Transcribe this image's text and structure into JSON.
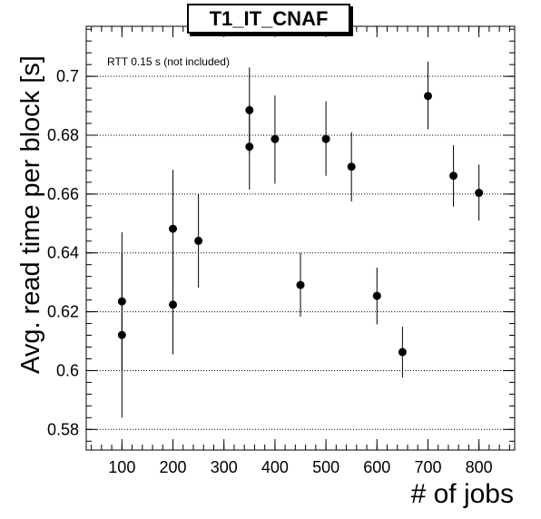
{
  "chart_data": {
    "type": "scatter",
    "title": "T1_IT_CNAF",
    "xlabel": "# of jobs",
    "ylabel": "Avg. read time per block [s]",
    "annotation": "RTT 0.15 s (not included)",
    "xlim": [
      30,
      870
    ],
    "ylim": [
      0.573,
      0.717
    ],
    "xticks": [
      100,
      200,
      300,
      400,
      500,
      600,
      700,
      800
    ],
    "yticks": [
      0.58,
      0.6,
      0.62,
      0.64,
      0.66,
      0.68,
      0.7
    ],
    "ytick_labels": [
      "0.58",
      "0.6",
      "0.62",
      "0.64",
      "0.66",
      "0.68",
      "0.7"
    ],
    "grid": "horizontal-dotted",
    "series": [
      {
        "points": [
          {
            "x": 100,
            "y": 0.6235,
            "ylo": 0.6,
            "yhi": 0.647
          },
          {
            "x": 100,
            "y": 0.6121,
            "ylo": 0.584,
            "yhi": 0.64
          },
          {
            "x": 200,
            "y": 0.6482,
            "ylo": 0.6282,
            "yhi": 0.6682
          },
          {
            "x": 200,
            "y": 0.6224,
            "ylo": 0.6055,
            "yhi": 0.639
          },
          {
            "x": 250,
            "y": 0.6441,
            "ylo": 0.6282,
            "yhi": 0.66
          },
          {
            "x": 350,
            "y": 0.6885,
            "ylo": 0.674,
            "yhi": 0.703
          },
          {
            "x": 350,
            "y": 0.6761,
            "ylo": 0.6615,
            "yhi": 0.6905
          },
          {
            "x": 400,
            "y": 0.6787,
            "ylo": 0.6635,
            "yhi": 0.6935
          },
          {
            "x": 450,
            "y": 0.6291,
            "ylo": 0.6183,
            "yhi": 0.64
          },
          {
            "x": 500,
            "y": 0.6787,
            "ylo": 0.6662,
            "yhi": 0.6915
          },
          {
            "x": 550,
            "y": 0.6693,
            "ylo": 0.6575,
            "yhi": 0.681
          },
          {
            "x": 600,
            "y": 0.6254,
            "ylo": 0.6157,
            "yhi": 0.635
          },
          {
            "x": 650,
            "y": 0.6063,
            "ylo": 0.5977,
            "yhi": 0.6149
          },
          {
            "x": 700,
            "y": 0.6933,
            "ylo": 0.682,
            "yhi": 0.705
          },
          {
            "x": 750,
            "y": 0.6662,
            "ylo": 0.6557,
            "yhi": 0.6766
          },
          {
            "x": 800,
            "y": 0.6604,
            "ylo": 0.651,
            "yhi": 0.67
          }
        ]
      }
    ]
  }
}
